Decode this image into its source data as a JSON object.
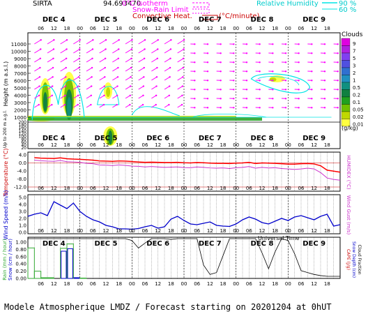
{
  "header": {
    "site": "SIRTA",
    "coords": "94.693470",
    "legend_iso": "0°C isotherm",
    "legend_snow": "Snow-Rain Limit",
    "legend_conv": "Convective Heat.",
    "legend_conv_unit": "(°C/minute)",
    "legend_rh": "Relative Humidity",
    "rh_90": "90 %",
    "rh_60": "60 %"
  },
  "footer": "Modele Atmospherique LMDZ / Forecast starting on 20201204 at 0hUT",
  "xaxis": {
    "days": [
      "DEC 4",
      "DEC 5",
      "DEC 6",
      "DEC 7",
      "DEC 8",
      "DEC 9"
    ],
    "hours": [
      "06",
      "12",
      "18",
      "00"
    ],
    "universal_time": "Universal Time"
  },
  "colors": {
    "iso": "#ff00ff",
    "snow": "#ff00ff",
    "conv": "#cc0000",
    "rh": "#00e5e5",
    "temp": "#ff0000",
    "humidex": "#cc33cc",
    "wind": "#0000cc",
    "rain": "#33aa33",
    "snowfall": "#0000cc",
    "cape": "#000000"
  },
  "clouds_legend": {
    "title": "Clouds",
    "unit": "(g/kg)",
    "labels": [
      "9",
      "7",
      "5",
      "3",
      "2",
      "1",
      "0.5",
      "0.2",
      "0.1",
      "0.05",
      "0.02",
      "0.01"
    ],
    "colors": [
      "#e000e0",
      "#b020e0",
      "#8040f0",
      "#5050e0",
      "#3070d0",
      "#2090c0",
      "#109080",
      "#108040",
      "#20a020",
      "#70c000",
      "#c0d800",
      "#ffff40"
    ]
  },
  "chart_data": [
    {
      "type": "heatmap",
      "ylabel": "Height (m a.s.l.)",
      "ylabel2": "Up to 200 m a.g.l.",
      "y_ticks_upper": [
        11000,
        10000,
        9000,
        8000,
        7000,
        6000,
        5000,
        4000,
        3000,
        2000,
        1000
      ],
      "y_ticks_lower": [
        200,
        180,
        160,
        140,
        120,
        100,
        80,
        60,
        40,
        20
      ],
      "days": [
        "DEC 4",
        "DEC 5",
        "DEC 6",
        "DEC 7",
        "DEC 8",
        "DEC 9"
      ]
    },
    {
      "type": "line",
      "ylabel": "Temperature (°C)",
      "ylabel_right": "HUMIDEX (°C)",
      "ylim": [
        -12,
        4
      ],
      "y_ticks": [
        "4.0",
        "0.0",
        "-4.0",
        "-8.0",
        "-12.0"
      ],
      "x_hours": [
        3,
        6,
        9,
        12,
        15,
        18,
        21,
        24,
        27,
        30,
        33,
        36,
        39,
        42,
        45,
        48,
        51,
        54,
        57,
        60,
        63,
        66,
        69,
        72,
        75,
        78,
        81,
        84,
        87,
        90,
        93,
        96,
        99,
        102,
        105,
        108,
        111,
        114,
        117,
        120,
        123,
        126,
        129,
        132,
        135,
        138,
        141,
        144
      ],
      "series": [
        {
          "name": "Temperature",
          "values": [
            2.6,
            2.4,
            2.3,
            2.2,
            2.5,
            2.1,
            1.9,
            1.8,
            1.6,
            1.4,
            1.0,
            0.9,
            0.8,
            1.0,
            0.9,
            0.7,
            0.5,
            0.3,
            0.4,
            0.3,
            0.2,
            0.2,
            0.3,
            0.1,
            0.0,
            0.2,
            0.1,
            -0.1,
            -0.2,
            -0.2,
            -0.3,
            -0.1,
            0.0,
            0.3,
            -0.3,
            0.0,
            -0.1,
            -0.2,
            -0.4,
            -0.6,
            -0.6,
            -0.4,
            -0.3,
            -0.5,
            -1.4,
            -3.6,
            -4.1,
            -4.6
          ]
        },
        {
          "name": "Humidex",
          "values": [
            1.4,
            1.1,
            0.9,
            0.8,
            1.2,
            0.6,
            0.5,
            0.3,
            -0.2,
            -0.4,
            -1.0,
            -1.1,
            -1.3,
            -1.0,
            -1.2,
            -1.6,
            -1.7,
            -2.0,
            -1.8,
            -2.0,
            -2.2,
            -2.1,
            -2.0,
            -2.3,
            -2.4,
            -2.0,
            -2.2,
            -2.5,
            -2.6,
            -2.5,
            -2.8,
            -2.4,
            -2.2,
            -1.8,
            -2.6,
            -2.2,
            -2.5,
            -2.4,
            -2.8,
            -3.0,
            -3.2,
            -3.0,
            -2.6,
            -3.0,
            -4.8,
            -7.5,
            -8.2,
            -8.6
          ]
        }
      ]
    },
    {
      "type": "line",
      "ylabel": "Wind Speed (m/s)",
      "ylabel_right": "Wind Gust (m/s)",
      "ylim": [
        0,
        5
      ],
      "y_ticks": [
        "5.0",
        "4.0",
        "3.0",
        "2.0",
        "1.0",
        "0.0"
      ],
      "x_hours": [
        0,
        3,
        6,
        9,
        12,
        15,
        18,
        21,
        24,
        27,
        30,
        33,
        36,
        39,
        42,
        45,
        48,
        51,
        54,
        57,
        60,
        63,
        66,
        69,
        72,
        75,
        78,
        81,
        84,
        87,
        90,
        93,
        96,
        99,
        102,
        105,
        108,
        111,
        114,
        117,
        120,
        123,
        126,
        129,
        132,
        135,
        138,
        141,
        144
      ],
      "series": [
        {
          "name": "Wind",
          "values": [
            2.3,
            2.6,
            2.8,
            2.4,
            4.4,
            3.9,
            3.4,
            4.2,
            3.0,
            2.3,
            1.8,
            1.5,
            1.0,
            0.8,
            0.5,
            0.5,
            0.45,
            0.55,
            0.8,
            1.0,
            0.6,
            0.8,
            1.9,
            2.3,
            1.7,
            1.2,
            1.1,
            1.3,
            1.5,
            1.0,
            0.9,
            0.85,
            1.2,
            1.8,
            2.2,
            1.9,
            1.4,
            1.2,
            1.6,
            2.0,
            1.7,
            2.2,
            2.4,
            2.1,
            1.8,
            2.3,
            2.6,
            0.9,
            1.1
          ]
        }
      ]
    },
    {
      "type": "bar",
      "ylabel": "Rain (mm / hour)",
      "ylabel2": "Snow (cm / hour)",
      "ylabel_right": "CAPE (J/g)",
      "ylabel_right2": "Snow Depth (cm)",
      "ylabel_right3": "Cloud Fraction",
      "ylim": [
        0,
        1.0
      ],
      "y_ticks": [
        "1.00",
        "0.80",
        "0.60",
        "0.40",
        "0.20",
        "0.00"
      ],
      "rain": {
        "name": "Rain",
        "x_hours": [
          0,
          3,
          6,
          9,
          12,
          15,
          18,
          21,
          24,
          27
        ],
        "values": [
          0.84,
          0.2,
          0.02,
          0.02,
          0.0,
          0.83,
          0.95,
          0.02,
          0.01,
          0.0
        ]
      },
      "snow": {
        "name": "Snow",
        "x_hours": [
          12,
          15,
          18,
          21
        ],
        "values": [
          0.0,
          0.75,
          0.82,
          0.02
        ]
      },
      "cloud_fraction": {
        "name": "Cloud Fraction",
        "x_hours": [
          0,
          3,
          6,
          9,
          12,
          15,
          18,
          21,
          24,
          27,
          30,
          33,
          36,
          39,
          42,
          45,
          48,
          51,
          54,
          57,
          60,
          63,
          66,
          69,
          72,
          75,
          78,
          81,
          84,
          87,
          90,
          93,
          96,
          99,
          102,
          105,
          108,
          111,
          114,
          117,
          120,
          123,
          126,
          129,
          132,
          135,
          138,
          141,
          144
        ],
        "values": [
          1,
          1,
          1,
          1,
          1,
          1,
          1,
          1,
          1,
          1,
          1,
          1,
          1,
          1,
          1,
          1,
          0.95,
          0.75,
          0.88,
          1,
          1,
          1,
          0.98,
          1,
          1,
          1,
          1,
          0.3,
          0.05,
          0.1,
          0.55,
          1,
          1,
          1,
          1,
          1,
          0.62,
          0.2,
          0.65,
          1,
          0.95,
          0.6,
          0.15,
          0.1,
          0.05,
          0.02,
          0.0,
          0.0,
          0.0
        ]
      }
    }
  ]
}
